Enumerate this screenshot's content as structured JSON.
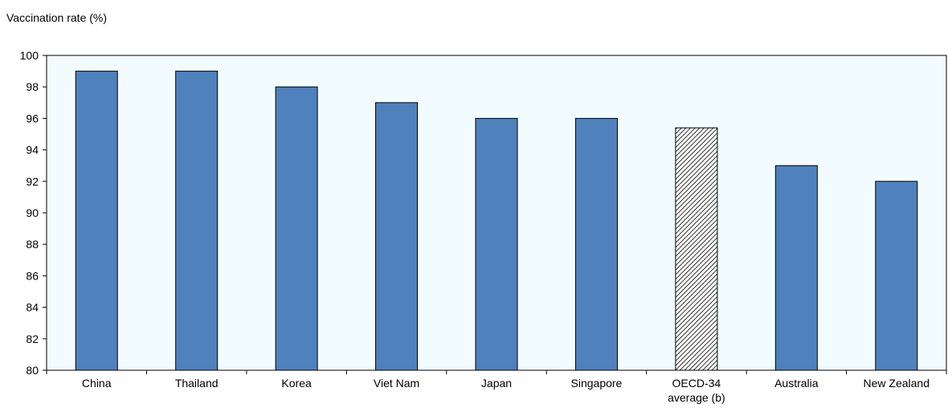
{
  "chart_data": {
    "type": "bar",
    "title": "",
    "xlabel": "",
    "ylabel": "Vaccination rate (%)",
    "ylim": [
      80,
      100
    ],
    "yticks": [
      80,
      82,
      84,
      86,
      88,
      90,
      92,
      94,
      96,
      98,
      100
    ],
    "grid": false,
    "categories": [
      [
        "China"
      ],
      [
        "Thailand"
      ],
      [
        "Korea"
      ],
      [
        "Viet Nam"
      ],
      [
        "Japan"
      ],
      [
        "Singapore"
      ],
      [
        "OECD-34",
        "average (b)"
      ],
      [
        "Australia"
      ],
      [
        "New Zealand"
      ]
    ],
    "values": [
      99,
      99,
      98,
      97,
      96,
      96,
      95.4,
      93,
      92
    ],
    "highlight_index": 6,
    "colors": {
      "bar": "#4f81bd",
      "highlight_pattern": "hatched",
      "plot_background": "#f2fcff",
      "axis": "#000000"
    }
  }
}
